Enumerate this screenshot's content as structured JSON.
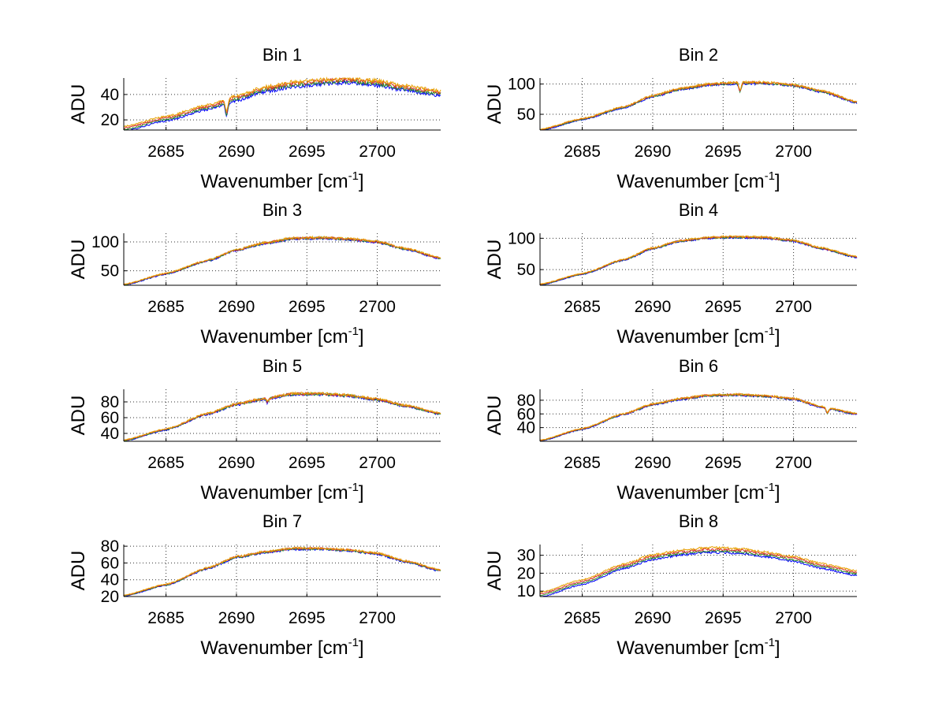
{
  "figure": {
    "background": "#ffffff",
    "series_colors": [
      "#0000ff",
      "#2c8a2c",
      "#d83030",
      "#e8a000"
    ]
  },
  "chart_data": [
    {
      "type": "line",
      "title": "Bin 1",
      "xlabel": "Wavenumber [cm",
      "xlabel_sup": "-1",
      "xlabel_end": "]",
      "ylabel": "ADU",
      "xlim": [
        2682,
        2704.5
      ],
      "ylim": [
        12,
        53
      ],
      "xticks": [
        2685,
        2690,
        2695,
        2700
      ],
      "yticks": [
        20,
        40
      ],
      "grid": true,
      "profile": {
        "x": [
          2682,
          2685,
          2688,
          2690,
          2692,
          2694,
          2696,
          2698,
          2700,
          2702,
          2704.5
        ],
        "y": [
          13,
          21,
          30,
          37,
          44,
          48,
          50,
          51,
          49,
          45,
          41
        ]
      },
      "dips": [
        {
          "x": 2689.3,
          "depth": 10
        }
      ],
      "noise": 1.2,
      "spread": 1.2
    },
    {
      "type": "line",
      "title": "Bin 2",
      "xlabel": "Wavenumber [cm",
      "xlabel_sup": "-1",
      "xlabel_end": "]",
      "ylabel": "ADU",
      "xlim": [
        2682,
        2704.5
      ],
      "ylim": [
        24,
        110
      ],
      "xticks": [
        2685,
        2690,
        2695,
        2700
      ],
      "yticks": [
        50,
        100
      ],
      "grid": true,
      "profile": {
        "x": [
          2682,
          2685,
          2688,
          2690,
          2692,
          2694,
          2696,
          2698,
          2700,
          2702,
          2704.5
        ],
        "y": [
          24,
          42,
          62,
          80,
          92,
          99,
          102,
          102,
          98,
          88,
          70
        ]
      },
      "dips": [
        {
          "x": 2696.2,
          "depth": 14
        }
      ],
      "noise": 1.5,
      "spread": 0.8
    },
    {
      "type": "line",
      "title": "Bin 3",
      "xlabel": "Wavenumber [cm",
      "xlabel_sup": "-1",
      "xlabel_end": "]",
      "ylabel": "ADU",
      "xlim": [
        2682,
        2704.5
      ],
      "ylim": [
        25,
        115
      ],
      "xticks": [
        2685,
        2690,
        2695,
        2700
      ],
      "yticks": [
        50,
        100
      ],
      "grid": true,
      "profile": {
        "x": [
          2682,
          2685,
          2688,
          2690,
          2692,
          2694,
          2696,
          2698,
          2700,
          2702,
          2704.5
        ],
        "y": [
          26,
          45,
          68,
          86,
          98,
          106,
          107,
          105,
          100,
          88,
          72
        ]
      },
      "dips": [],
      "noise": 1.6,
      "spread": 0.6
    },
    {
      "type": "line",
      "title": "Bin 4",
      "xlabel": "Wavenumber [cm",
      "xlabel_sup": "-1",
      "xlabel_end": "]",
      "ylabel": "ADU",
      "xlim": [
        2682,
        2704.5
      ],
      "ylim": [
        25,
        108
      ],
      "xticks": [
        2685,
        2690,
        2695,
        2700
      ],
      "yticks": [
        50,
        100
      ],
      "grid": true,
      "profile": {
        "x": [
          2682,
          2685,
          2688,
          2690,
          2692,
          2694,
          2696,
          2698,
          2700,
          2702,
          2704.5
        ],
        "y": [
          26,
          43,
          66,
          84,
          96,
          101,
          102,
          101,
          96,
          84,
          70
        ]
      },
      "dips": [],
      "noise": 1.2,
      "spread": 0.6
    },
    {
      "type": "line",
      "title": "Bin 5",
      "xlabel": "Wavenumber [cm",
      "xlabel_sup": "-1",
      "xlabel_end": "]",
      "ylabel": "ADU",
      "xlim": [
        2682,
        2704.5
      ],
      "ylim": [
        30,
        96
      ],
      "xticks": [
        2685,
        2690,
        2695,
        2700
      ],
      "yticks": [
        40,
        60,
        80
      ],
      "grid": true,
      "profile": {
        "x": [
          2682,
          2685,
          2688,
          2690,
          2692,
          2694,
          2696,
          2698,
          2700,
          2702,
          2704.5
        ],
        "y": [
          31,
          45,
          65,
          77,
          84,
          90,
          90,
          88,
          83,
          75,
          65
        ]
      },
      "dips": [
        {
          "x": 2692.2,
          "depth": 5
        }
      ],
      "noise": 1.3,
      "spread": 0.5
    },
    {
      "type": "line",
      "title": "Bin 6",
      "xlabel": "Wavenumber [cm",
      "xlabel_sup": "-1",
      "xlabel_end": "]",
      "ylabel": "ADU",
      "xlim": [
        2682,
        2704.5
      ],
      "ylim": [
        20,
        96
      ],
      "xticks": [
        2685,
        2690,
        2695,
        2700
      ],
      "yticks": [
        40,
        60,
        80
      ],
      "grid": true,
      "profile": {
        "x": [
          2682,
          2685,
          2688,
          2690,
          2692,
          2694,
          2696,
          2698,
          2700,
          2702,
          2704.5
        ],
        "y": [
          21,
          38,
          60,
          74,
          82,
          87,
          88,
          86,
          82,
          70,
          60
        ]
      },
      "dips": [
        {
          "x": 2702.4,
          "depth": 8
        }
      ],
      "noise": 1.2,
      "spread": 0.5
    },
    {
      "type": "line",
      "title": "Bin 7",
      "xlabel": "Wavenumber [cm",
      "xlabel_sup": "-1",
      "xlabel_end": "]",
      "ylabel": "ADU",
      "xlim": [
        2682,
        2704.5
      ],
      "ylim": [
        20,
        82
      ],
      "xticks": [
        2685,
        2690,
        2695,
        2700
      ],
      "yticks": [
        20,
        40,
        60,
        80
      ],
      "grid": true,
      "profile": {
        "x": [
          2682,
          2685,
          2688,
          2690,
          2692,
          2694,
          2696,
          2698,
          2700,
          2702,
          2704.5
        ],
        "y": [
          21,
          34,
          54,
          67,
          73,
          77,
          77,
          75,
          71,
          62,
          51
        ]
      },
      "dips": [],
      "noise": 1.0,
      "spread": 0.5
    },
    {
      "type": "line",
      "title": "Bin 8",
      "xlabel": "Wavenumber [cm",
      "xlabel_sup": "-1",
      "xlabel_end": "]",
      "ylabel": "ADU",
      "xlim": [
        2682,
        2704.5
      ],
      "ylim": [
        7,
        36
      ],
      "xticks": [
        2685,
        2690,
        2695,
        2700
      ],
      "yticks": [
        10,
        20,
        30
      ],
      "grid": true,
      "profile": {
        "x": [
          2682,
          2685,
          2688,
          2690,
          2692,
          2694,
          2696,
          2698,
          2700,
          2702,
          2704.5
        ],
        "y": [
          8,
          15,
          24,
          29,
          31.5,
          33,
          32.5,
          30.5,
          28,
          24,
          20
        ]
      },
      "dips": [],
      "noise": 0.5,
      "spread": 0.9
    }
  ]
}
